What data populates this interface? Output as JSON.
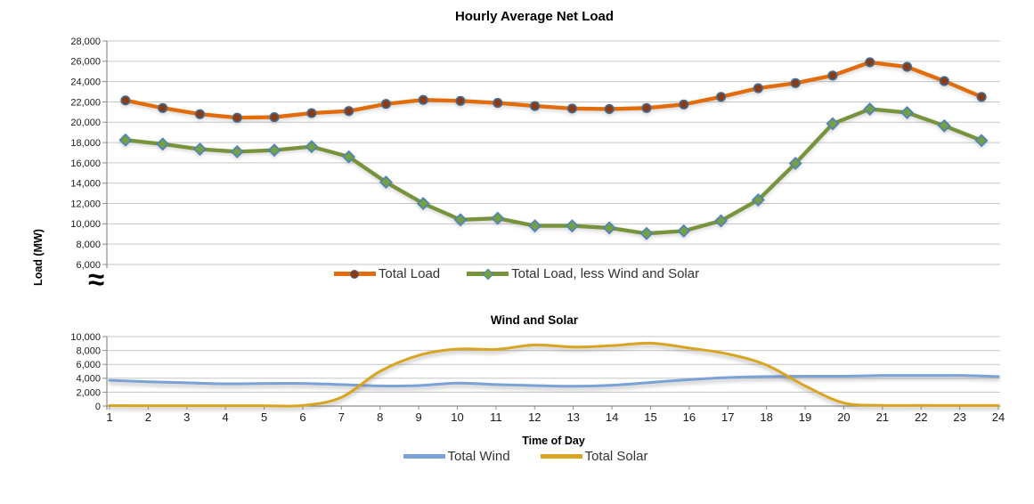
{
  "shared": {
    "axis_break_symbol": "≈",
    "background": "#FFFFFF",
    "gridline_color": "#C6C6C6",
    "axis_color": "#8C8C8C"
  },
  "chart_data": [
    {
      "type": "line",
      "title": "Hourly Average Net Load",
      "ylabel": "Load (MW)",
      "xlabel": "",
      "ylim": [
        6000,
        28000
      ],
      "y_tick_step": 2000,
      "y_tick_labels": [
        "28,000",
        "26,000",
        "24,000",
        "22,000",
        "20,000",
        "18,000",
        "16,000",
        "14,000",
        "12,000",
        "10,000",
        "8,000",
        "6,000"
      ],
      "x": [
        1,
        2,
        3,
        4,
        5,
        6,
        7,
        8,
        9,
        10,
        11,
        12,
        13,
        14,
        15,
        16,
        17,
        18,
        19,
        20,
        21,
        22,
        23,
        24
      ],
      "grid": "horizontal",
      "legend_position": "bottom",
      "axis_break_at_bottom": true,
      "series": [
        {
          "name": "Total Load",
          "color": "#E36C0A",
          "marker": "circle",
          "marker_fill": "#8B3A14",
          "marker_stroke": "#44698D",
          "values": [
            22150,
            21400,
            20800,
            20450,
            20500,
            20900,
            21100,
            21800,
            22200,
            22100,
            21900,
            21600,
            21350,
            21300,
            21400,
            21750,
            22500,
            23350,
            23850,
            24600,
            25900,
            25450,
            24050,
            22500
          ]
        },
        {
          "name": "Total Load, less Wind and Solar",
          "color": "#77933C",
          "marker": "diamond",
          "marker_fill": "#73A043",
          "marker_stroke": "#4E81BD",
          "values": [
            18250,
            17850,
            17350,
            17100,
            17250,
            17600,
            16600,
            14100,
            12000,
            10400,
            10550,
            9800,
            9800,
            9600,
            9050,
            9300,
            10300,
            12350,
            15950,
            19850,
            21300,
            20950,
            19650,
            18200
          ]
        }
      ]
    },
    {
      "type": "line",
      "title": "Wind and Solar",
      "xlabel": "Time of Day",
      "ylabel": "",
      "ylim": [
        0,
        10000
      ],
      "y_tick_step": 2000,
      "y_tick_labels": [
        "10,000",
        "8,000",
        "6,000",
        "4,000",
        "2,000",
        "0"
      ],
      "x": [
        1,
        2,
        3,
        4,
        5,
        6,
        7,
        8,
        9,
        10,
        11,
        12,
        13,
        14,
        15,
        16,
        17,
        18,
        19,
        20,
        21,
        22,
        23,
        24
      ],
      "x_tick_labels": [
        "1",
        "2",
        "3",
        "4",
        "5",
        "6",
        "7",
        "8",
        "9",
        "10",
        "11",
        "12",
        "13",
        "14",
        "15",
        "16",
        "17",
        "18",
        "19",
        "20",
        "21",
        "22",
        "23",
        "24"
      ],
      "grid": "horizontal",
      "legend_position": "bottom",
      "smoothed": true,
      "series": [
        {
          "name": "Total Wind",
          "color": "#7BA2D6",
          "marker": "none",
          "values": [
            3700,
            3500,
            3350,
            3200,
            3250,
            3250,
            3100,
            2900,
            2950,
            3300,
            3100,
            2950,
            2850,
            3000,
            3400,
            3800,
            4100,
            4250,
            4300,
            4300,
            4400,
            4400,
            4400,
            4250
          ]
        },
        {
          "name": "Total Solar",
          "color": "#D9A521",
          "marker": "none",
          "values": [
            60,
            50,
            50,
            50,
            50,
            80,
            1250,
            5000,
            7300,
            8200,
            8150,
            8800,
            8500,
            8700,
            9050,
            8350,
            7500,
            5900,
            2900,
            450,
            100,
            90,
            80,
            80
          ]
        }
      ]
    }
  ]
}
